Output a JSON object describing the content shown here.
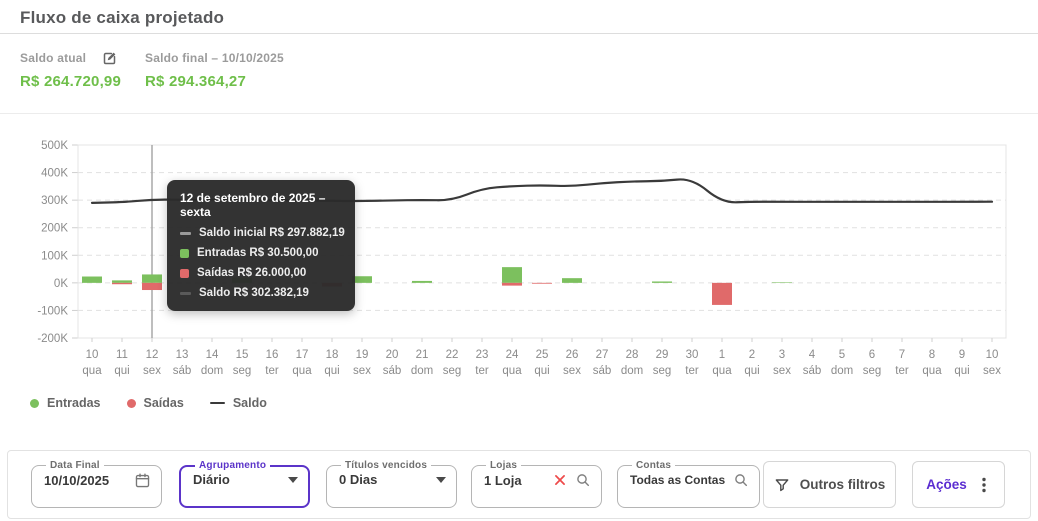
{
  "page": {
    "title": "Fluxo de caixa projetado"
  },
  "summary": {
    "saldo_atual": {
      "label": "Saldo atual",
      "value": "R$ 264.720,99"
    },
    "saldo_final": {
      "label": "Saldo final – 10/10/2025",
      "value": "R$ 294.364,27"
    }
  },
  "colors": {
    "accent_green": "#6fbf4a",
    "accent_purple": "#5b34c9",
    "bar_green": "#7cc05e",
    "bar_red": "#e06a6a",
    "saldo_line": "#3a3a3a",
    "grid": "#e1e1e1",
    "axis_text": "#8b8b8b",
    "tooltip_bg": "#2b2b2b"
  },
  "chart_data": {
    "type": "bar+line combo (daily cash flow)",
    "x_days": [
      "10",
      "11",
      "12",
      "13",
      "14",
      "15",
      "16",
      "17",
      "18",
      "19",
      "20",
      "21",
      "22",
      "23",
      "24",
      "25",
      "26",
      "27",
      "28",
      "29",
      "30",
      "1",
      "2",
      "3",
      "4",
      "5",
      "6",
      "7",
      "8",
      "9",
      "10"
    ],
    "x_weekdays": [
      "qua",
      "qui",
      "sex",
      "sáb",
      "dom",
      "seg",
      "ter",
      "qua",
      "qui",
      "sex",
      "sáb",
      "dom",
      "seg",
      "ter",
      "qua",
      "qui",
      "sex",
      "sáb",
      "dom",
      "seg",
      "ter",
      "qua",
      "qui",
      "sex",
      "sáb",
      "dom",
      "seg",
      "ter",
      "qua",
      "qui",
      "sex"
    ],
    "series": [
      {
        "name": "Entradas",
        "type": "bar",
        "direction": "up-from-zero",
        "color": "#7cc05e",
        "values": [
          23000,
          9000,
          30500,
          0,
          0,
          19000,
          0,
          0,
          0,
          24000,
          0,
          7000,
          0,
          0,
          57000,
          0,
          17000,
          0,
          0,
          5000,
          0,
          0,
          0,
          2000,
          0,
          0,
          0,
          0,
          0,
          0,
          0
        ]
      },
      {
        "name": "Saídas",
        "type": "bar",
        "direction": "down-from-zero",
        "color": "#e06a6a",
        "values": [
          0,
          5000,
          26000,
          0,
          0,
          0,
          0,
          0,
          13000,
          0,
          0,
          0,
          0,
          0,
          10000,
          3000,
          0,
          0,
          0,
          0,
          0,
          80000,
          0,
          0,
          0,
          0,
          0,
          0,
          0,
          0,
          0
        ]
      },
      {
        "name": "Saldo",
        "type": "line",
        "color": "#3a3a3a",
        "values": [
          290000,
          292000,
          302382,
          301500,
          301000,
          300500,
          300000,
          299000,
          297500,
          296500,
          299000,
          300500,
          299000,
          342000,
          351000,
          354000,
          350000,
          362000,
          368000,
          369000,
          380000,
          290000,
          294500,
          294000,
          294000,
          294000,
          294000,
          294000,
          294000,
          294000,
          294364
        ]
      }
    ],
    "ylim": [
      -200000,
      500000
    ],
    "ytick_labels": [
      "500K",
      "400K",
      "300K",
      "200K",
      "100K",
      "0K",
      "-100K",
      "-200K"
    ],
    "grid": true,
    "legend_position": "bottom-left",
    "crosshair_index": 2
  },
  "tooltip": {
    "title": "12 de setembro de 2025 – sexta",
    "rows": [
      {
        "swatch": "dash",
        "color": "#9a9a9a",
        "label": "Saldo inicial R$ 297.882,19"
      },
      {
        "swatch": "square",
        "color": "#7cc05e",
        "label": "Entradas R$ 30.500,00"
      },
      {
        "swatch": "square",
        "color": "#e06a6a",
        "label": "Saídas R$ 26.000,00"
      },
      {
        "swatch": "dash",
        "color": "#5a5a5a",
        "label": "Saldo R$ 302.382,19"
      }
    ]
  },
  "legend": {
    "items": [
      {
        "label": "Entradas",
        "marker": "dot",
        "color": "#7cc05e"
      },
      {
        "label": "Saídas",
        "marker": "dot",
        "color": "#e06a6a"
      },
      {
        "label": "Saldo",
        "marker": "dash",
        "color": "#3a3a3a"
      }
    ]
  },
  "filters": {
    "data_final": {
      "label": "Data Final",
      "value": "10/10/2025"
    },
    "agrupamento": {
      "label": "Agrupamento",
      "value": "Diário"
    },
    "titulos_vencidos": {
      "label": "Títulos vencidos",
      "value": "0 Dias"
    },
    "lojas": {
      "label": "Lojas",
      "value": "1 Loja"
    },
    "contas": {
      "label": "Contas",
      "value": "Todas as Contas"
    },
    "outros_filtros": {
      "label": "Outros filtros"
    },
    "acoes": {
      "label": "Ações"
    }
  }
}
